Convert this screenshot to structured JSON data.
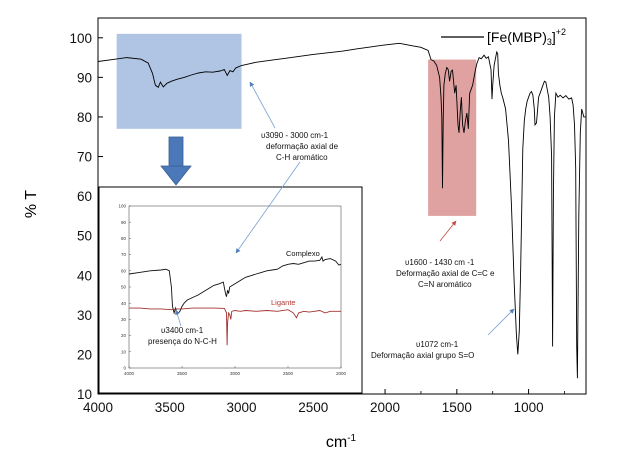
{
  "chart_data": {
    "type": "line",
    "xlabel": "cm",
    "xlabel_sup": "-1",
    "ylabel": "% T",
    "xlim": [
      4000,
      600
    ],
    "ylim": [
      10,
      105
    ],
    "x_ticks": [
      "4000",
      "3500",
      "3000",
      "2500",
      "2000",
      "1500",
      "1000"
    ],
    "y_ticks": [
      "10",
      "20",
      "30",
      "40",
      "50",
      "60",
      "70",
      "80",
      "90",
      "100"
    ],
    "legend": {
      "text": "[Fe(MBP)",
      "sub": "3",
      "close": "]",
      "sup": "+2",
      "position": "top-right"
    },
    "series": [
      {
        "name": "[Fe(MBP)3]+2",
        "color": "#000000",
        "points": [
          [
            4000,
            94
          ],
          [
            3900,
            94.5
          ],
          [
            3800,
            95
          ],
          [
            3700,
            94.6
          ],
          [
            3650,
            93.6
          ],
          [
            3620,
            91
          ],
          [
            3600,
            88
          ],
          [
            3580,
            87.5
          ],
          [
            3565,
            88.8
          ],
          [
            3545,
            87.6
          ],
          [
            3520,
            88.5
          ],
          [
            3490,
            89
          ],
          [
            3450,
            89.5
          ],
          [
            3400,
            90
          ],
          [
            3350,
            90.6
          ],
          [
            3300,
            91.1
          ],
          [
            3250,
            91.4
          ],
          [
            3200,
            91.3
          ],
          [
            3150,
            91.6
          ],
          [
            3120,
            92
          ],
          [
            3100,
            90.5
          ],
          [
            3080,
            91.7
          ],
          [
            3060,
            91.4
          ],
          [
            3040,
            92.4
          ],
          [
            3000,
            93
          ],
          [
            2950,
            93.4
          ],
          [
            2900,
            93.8
          ],
          [
            2800,
            94.3
          ],
          [
            2700,
            94.8
          ],
          [
            2600,
            95.3
          ],
          [
            2500,
            95.8
          ],
          [
            2400,
            96.2
          ],
          [
            2300,
            96.6
          ],
          [
            2200,
            97.2
          ],
          [
            2100,
            97.7
          ],
          [
            2000,
            98.2
          ],
          [
            1900,
            98.6
          ],
          [
            1800,
            97.9
          ],
          [
            1750,
            97.6
          ],
          [
            1700,
            96.8
          ],
          [
            1680,
            94.5
          ],
          [
            1660,
            94.1
          ],
          [
            1640,
            93
          ],
          [
            1620,
            90
          ],
          [
            1610,
            85
          ],
          [
            1605,
            80
          ],
          [
            1600,
            62
          ],
          [
            1595,
            79
          ],
          [
            1590,
            88
          ],
          [
            1580,
            91
          ],
          [
            1570,
            92.5
          ],
          [
            1560,
            92
          ],
          [
            1550,
            89
          ],
          [
            1540,
            91.5
          ],
          [
            1530,
            91.8
          ],
          [
            1515,
            86
          ],
          [
            1505,
            88
          ],
          [
            1492,
            78
          ],
          [
            1485,
            76
          ],
          [
            1475,
            82
          ],
          [
            1468,
            85
          ],
          [
            1460,
            78
          ],
          [
            1450,
            76
          ],
          [
            1440,
            79
          ],
          [
            1430,
            81
          ],
          [
            1420,
            77
          ],
          [
            1410,
            86
          ],
          [
            1390,
            88
          ],
          [
            1370,
            92
          ],
          [
            1360,
            93.5
          ],
          [
            1345,
            95
          ],
          [
            1330,
            94.7
          ],
          [
            1310,
            95.6
          ],
          [
            1295,
            94.8
          ],
          [
            1280,
            95.2
          ],
          [
            1262,
            92
          ],
          [
            1255,
            84.5
          ],
          [
            1250,
            88
          ],
          [
            1240,
            93
          ],
          [
            1222,
            96.4
          ],
          [
            1215,
            96
          ],
          [
            1210,
            91
          ],
          [
            1200,
            88
          ],
          [
            1190,
            86
          ],
          [
            1180,
            84.8
          ],
          [
            1160,
            82
          ],
          [
            1140,
            74
          ],
          [
            1120,
            58
          ],
          [
            1100,
            38
          ],
          [
            1085,
            25
          ],
          [
            1075,
            20
          ],
          [
            1065,
            26
          ],
          [
            1055,
            42
          ],
          [
            1045,
            62
          ],
          [
            1040,
            72
          ],
          [
            1030,
            79
          ],
          [
            1020,
            82
          ],
          [
            1010,
            84
          ],
          [
            1000,
            85
          ],
          [
            990,
            86
          ],
          [
            980,
            86.4
          ],
          [
            970,
            85.5
          ],
          [
            960,
            82
          ],
          [
            955,
            78
          ],
          [
            945,
            78.5
          ],
          [
            930,
            85
          ],
          [
            920,
            86
          ],
          [
            900,
            88
          ],
          [
            890,
            89
          ],
          [
            880,
            88.8
          ],
          [
            860,
            85
          ],
          [
            850,
            80
          ],
          [
            840,
            70
          ],
          [
            833,
            22
          ],
          [
            827,
            60
          ],
          [
            820,
            80
          ],
          [
            810,
            86
          ],
          [
            795,
            85
          ],
          [
            780,
            85.5
          ],
          [
            760,
            84.8
          ],
          [
            740,
            85.4
          ],
          [
            720,
            84.5
          ],
          [
            700,
            84.8
          ],
          [
            690,
            83
          ],
          [
            680,
            78
          ],
          [
            672,
            67
          ],
          [
            665,
            22
          ],
          [
            660,
            14
          ],
          [
            650,
            55
          ],
          [
            640,
            76
          ],
          [
            630,
            82
          ],
          [
            615,
            80
          ],
          [
            600,
            80
          ]
        ]
      }
    ],
    "highlights": [
      {
        "from": 3870,
        "to": 3000,
        "ymin": 77,
        "ymax": 101,
        "color": "#6d96cc"
      },
      {
        "from": 1700,
        "to": 1365,
        "ymin": 55,
        "ymax": 94.5,
        "color": "#cc6262"
      }
    ],
    "annotations": [
      {
        "lines": [
          "υ3090 - 3000 cm-1",
          "deformação axial de",
          "C-H aromático"
        ]
      },
      {
        "lines": [
          "υ1600 - 1430  cm -1",
          "Deformação axial de C=C e",
          "C=N aromático"
        ]
      },
      {
        "lines": [
          "υ1072 cm-1",
          "Deformação axial grupo S=O"
        ]
      }
    ],
    "inset": {
      "type": "line",
      "xlim": [
        4000,
        2000
      ],
      "ylim": [
        0,
        100
      ],
      "x_ticks": [
        "4000",
        "3500",
        "3000",
        "2500",
        "2000"
      ],
      "y_ticks": [
        "0",
        "10",
        "20",
        "30",
        "40",
        "50",
        "60",
        "70",
        "80",
        "90",
        "100"
      ],
      "series": [
        {
          "name": "Complexo",
          "color": "#111111",
          "points": [
            [
              4000,
              58
            ],
            [
              3900,
              59
            ],
            [
              3800,
              60
            ],
            [
              3700,
              60.5
            ],
            [
              3650,
              61
            ],
            [
              3620,
              60
            ],
            [
              3600,
              50
            ],
            [
              3590,
              38
            ],
            [
              3575,
              34
            ],
            [
              3560,
              37
            ],
            [
              3545,
              33
            ],
            [
              3520,
              35
            ],
            [
              3500,
              38
            ],
            [
              3480,
              40
            ],
            [
              3450,
              42
            ],
            [
              3400,
              43.5
            ],
            [
              3350,
              45
            ],
            [
              3300,
              47
            ],
            [
              3250,
              49
            ],
            [
              3200,
              51
            ],
            [
              3150,
              52
            ],
            [
              3110,
              53
            ],
            [
              3090,
              46
            ],
            [
              3080,
              44
            ],
            [
              3070,
              48
            ],
            [
              3060,
              46
            ],
            [
              3050,
              50
            ],
            [
              3000,
              52
            ],
            [
              2950,
              54
            ],
            [
              2900,
              56
            ],
            [
              2850,
              57
            ],
            [
              2800,
              58
            ],
            [
              2750,
              59
            ],
            [
              2700,
              60
            ],
            [
              2650,
              60.5
            ],
            [
              2600,
              61
            ],
            [
              2550,
              63
            ],
            [
              2500,
              64
            ],
            [
              2450,
              64.5
            ],
            [
              2400,
              64
            ],
            [
              2350,
              65
            ],
            [
              2300,
              66
            ],
            [
              2250,
              66
            ],
            [
              2200,
              66.5
            ],
            [
              2180,
              68.5
            ],
            [
              2170,
              66
            ],
            [
              2150,
              67
            ],
            [
              2100,
              67.5
            ],
            [
              2050,
              66
            ],
            [
              2020,
              63.5
            ],
            [
              2000,
              64
            ]
          ]
        },
        {
          "name": "Ligante",
          "color": "#a3332f",
          "points": [
            [
              4000,
              37
            ],
            [
              3900,
              37
            ],
            [
              3800,
              36.5
            ],
            [
              3700,
              36.5
            ],
            [
              3600,
              36
            ],
            [
              3550,
              36.5
            ],
            [
              3500,
              36.5
            ],
            [
              3400,
              37
            ],
            [
              3300,
              37
            ],
            [
              3200,
              37
            ],
            [
              3100,
              36.8
            ],
            [
              3080,
              34
            ],
            [
              3075,
              14
            ],
            [
              3070,
              28
            ],
            [
              3060,
              34
            ],
            [
              3050,
              33
            ],
            [
              3040,
              30
            ],
            [
              3030,
              35
            ],
            [
              3000,
              35.5
            ],
            [
              2950,
              35
            ],
            [
              2900,
              35.5
            ],
            [
              2800,
              35
            ],
            [
              2700,
              35.5
            ],
            [
              2600,
              35
            ],
            [
              2500,
              36
            ],
            [
              2450,
              34
            ],
            [
              2420,
              31
            ],
            [
              2400,
              34
            ],
            [
              2350,
              35
            ],
            [
              2300,
              34.5
            ],
            [
              2250,
              35
            ],
            [
              2200,
              35.5
            ],
            [
              2150,
              34
            ],
            [
              2100,
              35
            ],
            [
              2050,
              35
            ],
            [
              2000,
              35
            ]
          ]
        }
      ],
      "labels": {
        "complexo": "Complexo",
        "ligante": "Ligante",
        "nch": [
          "υ3400 cm-1",
          "presença do N-C-H"
        ]
      }
    }
  }
}
